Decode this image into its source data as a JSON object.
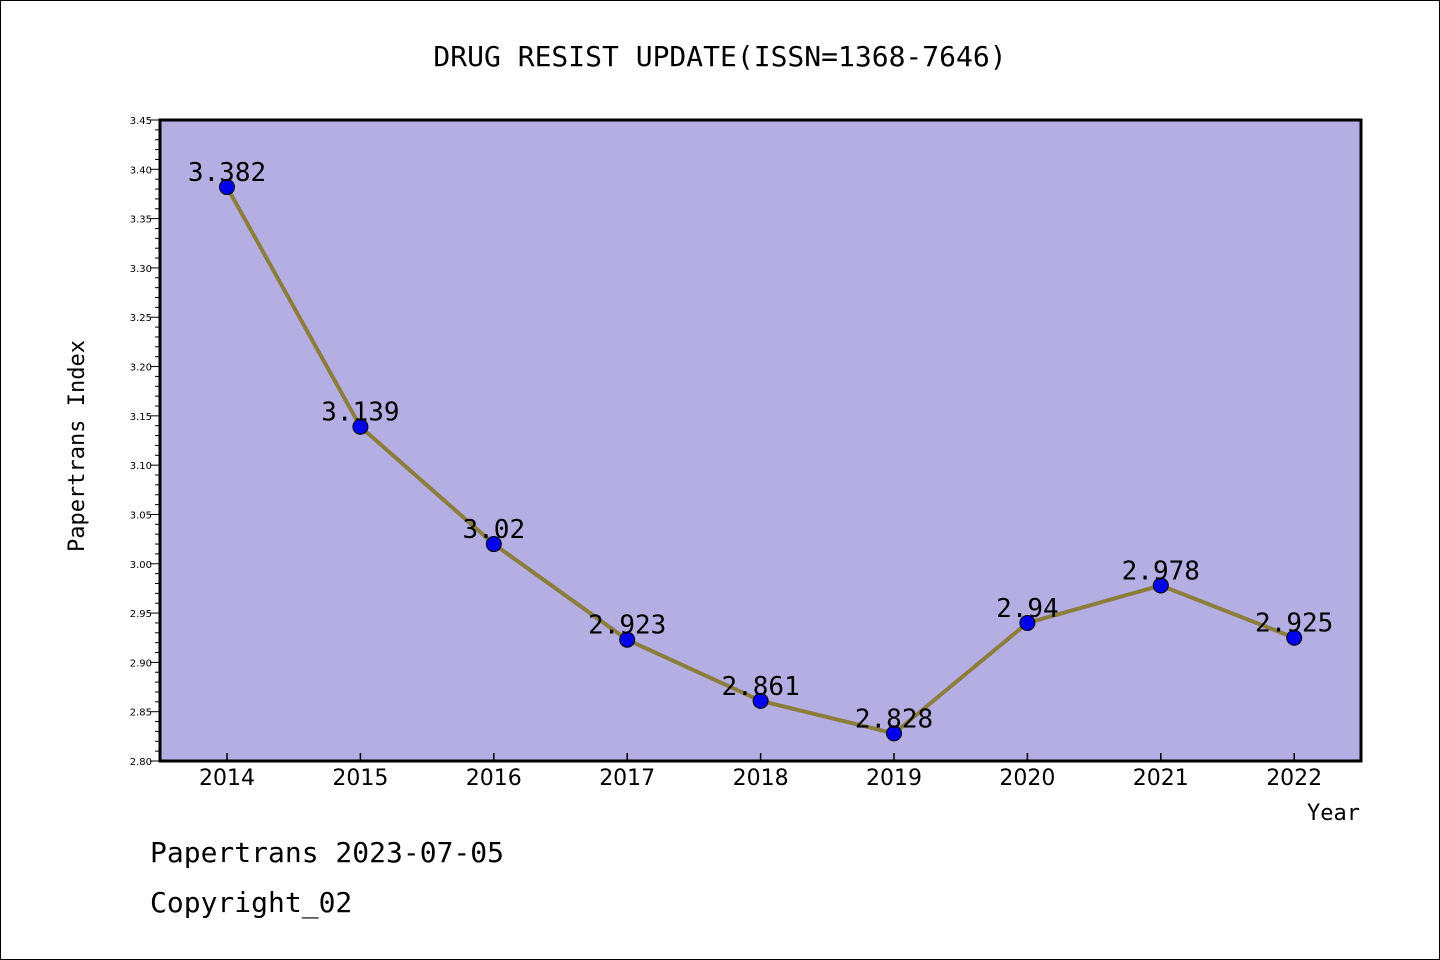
{
  "chart_data": {
    "type": "line",
    "title": "DRUG RESIST UPDATE(ISSN=1368-7646)",
    "xlabel": "Year",
    "ylabel": "Papertrans Index",
    "x": [
      "2014",
      "2015",
      "2016",
      "2017",
      "2018",
      "2019",
      "2020",
      "2021",
      "2022"
    ],
    "values": [
      3.382,
      3.139,
      3.02,
      2.923,
      2.861,
      2.828,
      2.94,
      2.978,
      2.925
    ],
    "data_labels": [
      "3.382",
      "3.139",
      "3.02",
      "2.923",
      "2.861",
      "2.828",
      "2.94",
      "2.978",
      "2.925"
    ],
    "ylim": [
      2.8,
      3.45
    ],
    "yticks": [
      "2.80",
      "2.85",
      "2.90",
      "2.95",
      "3.00",
      "3.05",
      "3.10",
      "3.15",
      "3.20",
      "3.25",
      "3.30",
      "3.35",
      "3.40",
      "3.45"
    ],
    "grid": false,
    "colors": {
      "plot_background": "#b5aee2",
      "line": "#8b7d3a",
      "marker": "#0000ee"
    }
  },
  "footer": {
    "line1": "Papertrans 2023-07-05",
    "line2": "Copyright_02"
  }
}
